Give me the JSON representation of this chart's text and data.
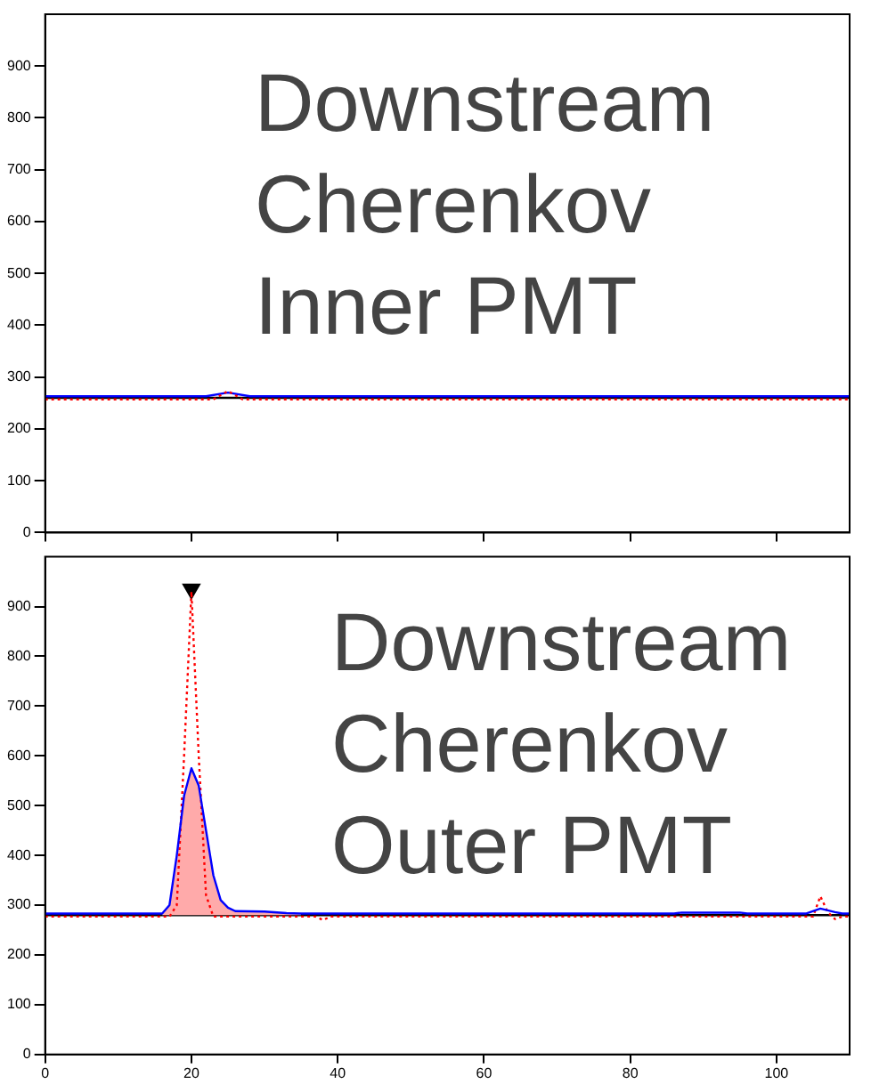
{
  "chart_data": [
    {
      "type": "line",
      "title": "Downstream Cherenkov Inner PMT",
      "xlim": [
        0,
        110
      ],
      "xticks": [
        0,
        20,
        40,
        60,
        80,
        100
      ],
      "ylim": [
        0,
        1000
      ],
      "yticks": [
        0,
        100,
        200,
        300,
        400,
        500,
        600,
        700,
        800,
        900
      ],
      "tick_labels": "y",
      "grid": false,
      "legend": false,
      "marker": "none",
      "ref_lines": [
        {
          "axis": "y",
          "value": 260,
          "color": "#000000"
        }
      ],
      "series": [
        {
          "type": "line",
          "color": "#ff0000",
          "line_style": "dotted",
          "x": [
            0,
            23,
            25,
            27,
            110
          ],
          "values": [
            257,
            257,
            273,
            257,
            257
          ]
        },
        {
          "type": "line",
          "color": "#0000ff",
          "line_style": "solid",
          "x": [
            0,
            22,
            25,
            28,
            110
          ],
          "values": [
            263,
            263,
            270,
            263,
            263
          ]
        }
      ]
    },
    {
      "type": "line",
      "title": "Downstream Cherenkov Outer PMT",
      "xlim": [
        0,
        110
      ],
      "xticks": [
        0,
        20,
        40,
        60,
        80,
        100
      ],
      "ylim": [
        0,
        1000
      ],
      "yticks": [
        0,
        100,
        200,
        300,
        400,
        500,
        600,
        700,
        800,
        900
      ],
      "grid": false,
      "legend": false,
      "marker": "none",
      "ref_lines": [
        {
          "axis": "y",
          "value": 280,
          "color": "#000000"
        }
      ],
      "series": [
        {
          "type": "area",
          "color": "#ffaaaa",
          "x": [
            16,
            17,
            18,
            19,
            20,
            21,
            22,
            23,
            24,
            25,
            26,
            30,
            33,
            35
          ],
          "values": [
            283,
            300,
            400,
            520,
            575,
            540,
            450,
            360,
            310,
            295,
            288,
            287,
            284,
            283
          ]
        },
        {
          "type": "line",
          "color": "#0000ff",
          "line_style": "solid",
          "x": [
            0,
            16,
            17,
            18,
            19,
            20,
            21,
            22,
            23,
            24,
            25,
            26,
            30,
            33,
            35,
            86,
            87,
            95,
            96,
            104,
            106,
            108,
            109,
            110
          ],
          "values": [
            283,
            283,
            300,
            400,
            520,
            575,
            540,
            450,
            360,
            310,
            295,
            288,
            287,
            284,
            283,
            283,
            285,
            285,
            283,
            283,
            293,
            286,
            283,
            283
          ]
        },
        {
          "type": "line",
          "color": "#ff0000",
          "line_style": "dotted",
          "x": [
            0,
            17,
            18,
            19,
            20,
            21,
            22,
            23,
            37,
            38,
            39,
            105,
            106,
            107,
            108,
            109,
            110
          ],
          "values": [
            277,
            277,
            300,
            600,
            930,
            600,
            320,
            277,
            277,
            270,
            277,
            277,
            318,
            286,
            272,
            277,
            277
          ]
        },
        {
          "type": "scatter",
          "color": "#000000",
          "marker": "triangle",
          "x": [
            20
          ],
          "values": [
            935
          ]
        }
      ]
    }
  ]
}
